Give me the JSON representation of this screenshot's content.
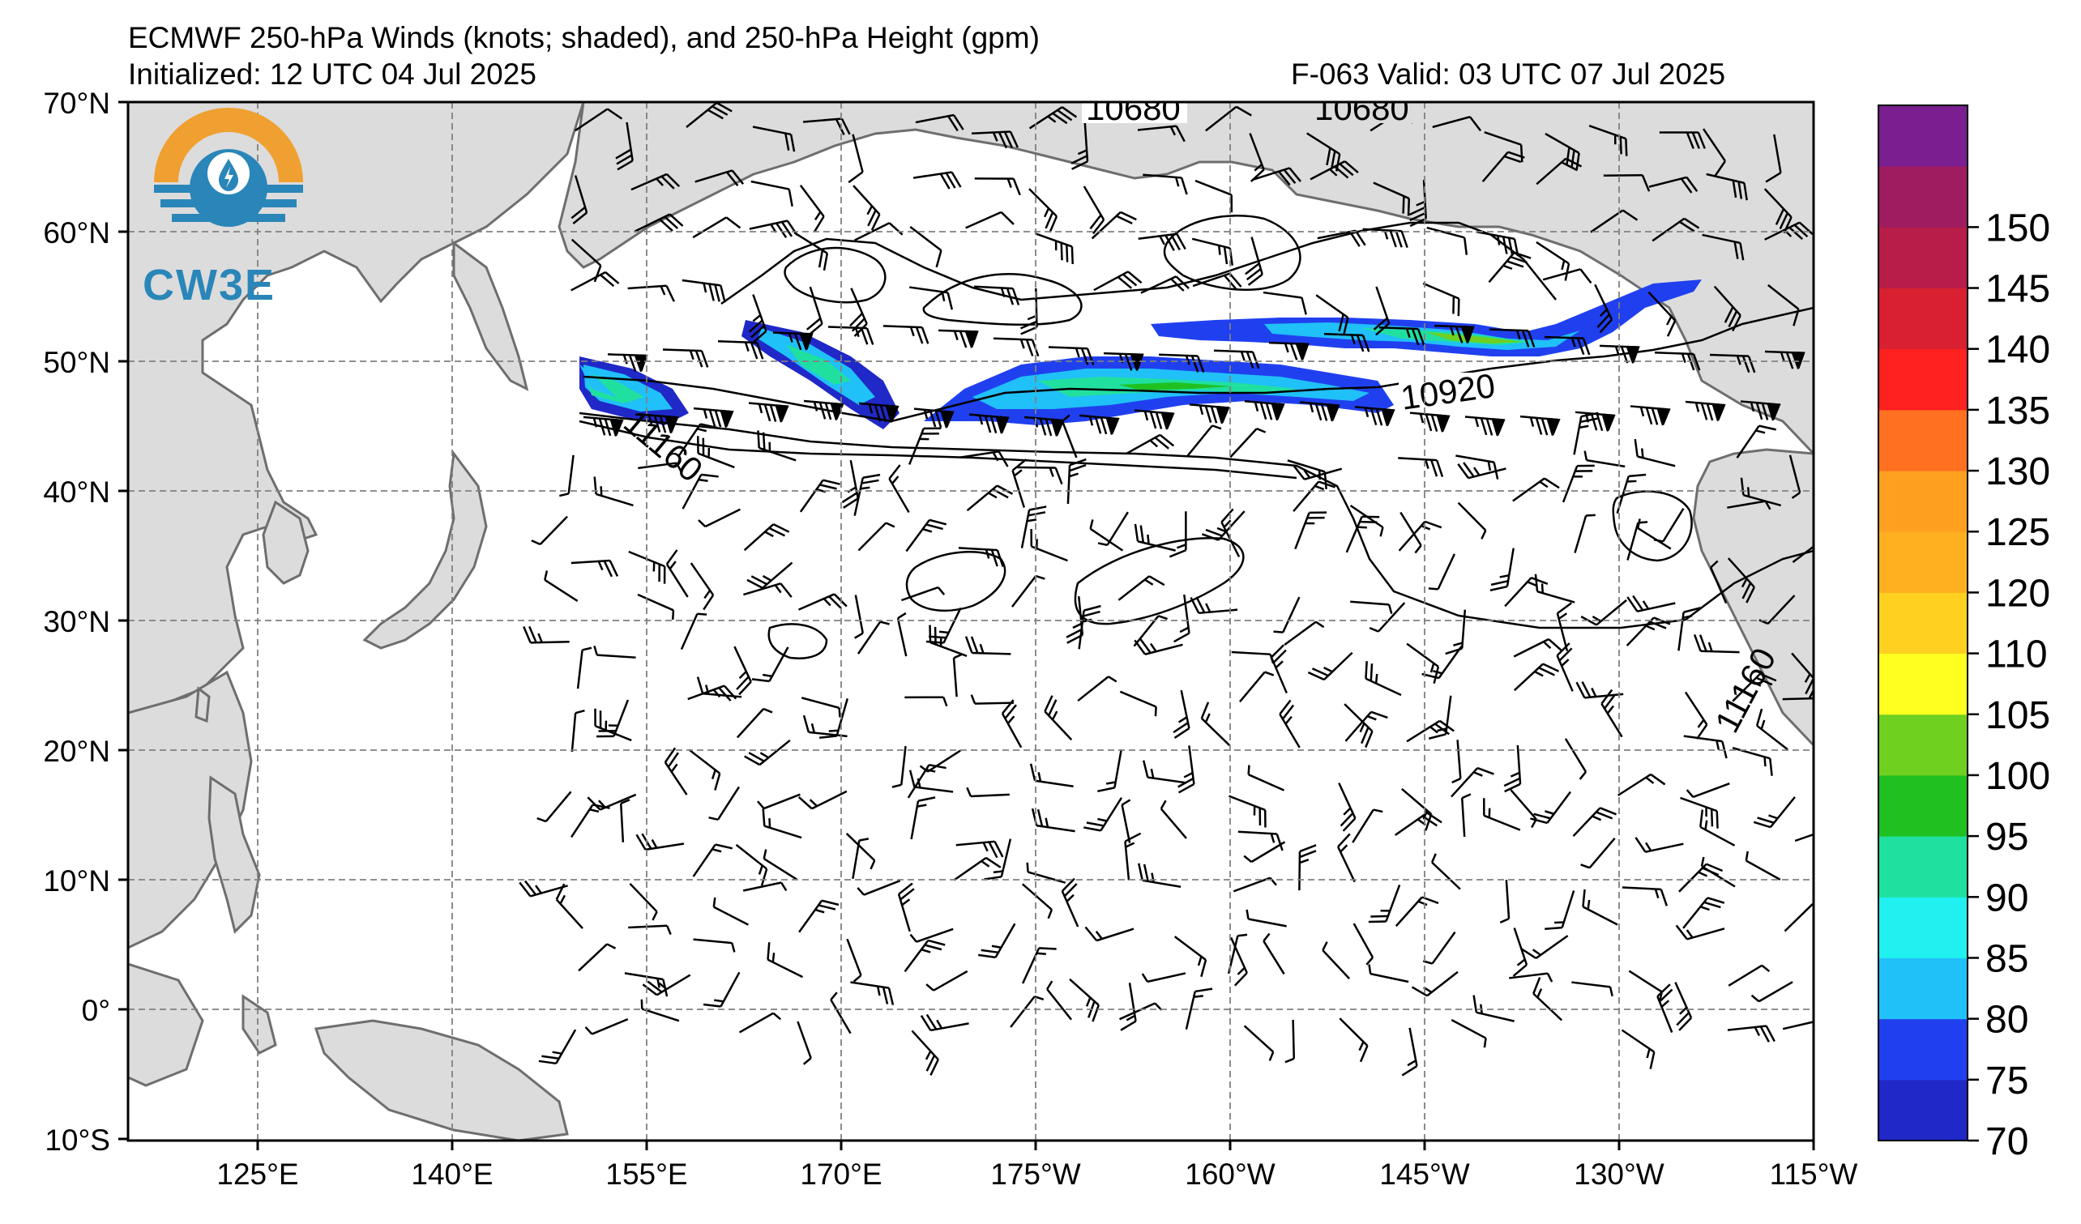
{
  "header": {
    "title": "ECMWF 250-hPa Winds (knots; shaded), and 250-hPa Height (gpm)",
    "initialized": "Initialized: 12 UTC 04 Jul 2025",
    "valid": "F-063  Valid: 03 UTC 07 Jul 2025"
  },
  "logo": {
    "text": "CW3E",
    "icon": "cw3e-logo-icon"
  },
  "axes": {
    "lat_labels": [
      "70°N",
      "60°N",
      "50°N",
      "40°N",
      "30°N",
      "20°N",
      "10°N",
      "0°",
      "10°S"
    ],
    "lon_labels": [
      "125°E",
      "140°E",
      "155°E",
      "170°E",
      "175°W",
      "160°W",
      "145°W",
      "130°W",
      "115°W"
    ],
    "lat_range": [
      -10,
      70
    ],
    "lon_range_east": [
      115,
      245
    ],
    "gridlines": true
  },
  "height_labels": [
    "10680",
    "10680",
    "10920",
    "11160",
    "11160"
  ],
  "colorbar": {
    "units": "knots",
    "ticks": [
      "70",
      "75",
      "80",
      "85",
      "90",
      "95",
      "100",
      "105",
      "110",
      "120",
      "125",
      "130",
      "135",
      "140",
      "145",
      "150"
    ],
    "colors": [
      "#2028c8",
      "#2040f0",
      "#20c0f8",
      "#20f0f0",
      "#20e0a0",
      "#20c020",
      "#70d020",
      "#ffff20",
      "#ffd020",
      "#ffb020",
      "#ffa020",
      "#ff7020",
      "#ff2020",
      "#d82030",
      "#b81c48",
      "#a01c60",
      "#7a1e90"
    ]
  },
  "colors": {
    "land": "#dcdcdc",
    "coast": "#6e6e6e",
    "grid": "#808080",
    "contour": "#000000"
  }
}
